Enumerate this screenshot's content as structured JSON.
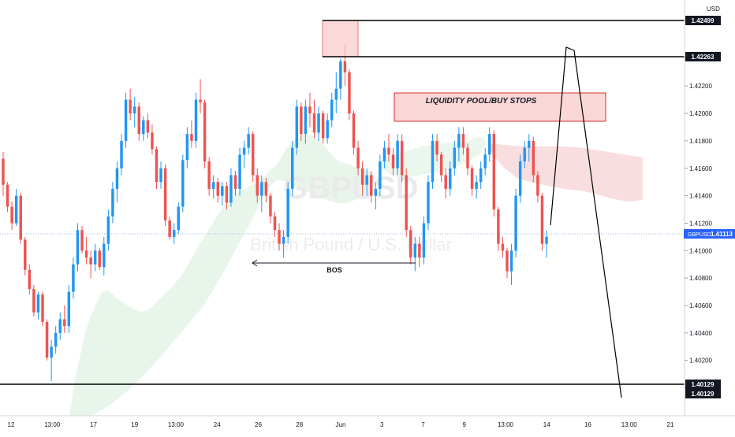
{
  "chart_data": {
    "type": "candlestick",
    "symbol": "GBPUSD",
    "watermark_symbol": "GBPUSD",
    "watermark_name": "British Pound / U.S. Dollar",
    "currency": "USD",
    "y_range": [
      1.399,
      1.4262
    ],
    "y_ticks": [
      "1.42400",
      "1.42200",
      "1.42000",
      "1.41800",
      "1.41600",
      "1.41400",
      "1.41200",
      "1.41000",
      "1.40800",
      "1.40600",
      "1.40400",
      "1.40200",
      "1.40000"
    ],
    "x_ticks": [
      "12",
      "13:00",
      "17",
      "19",
      "13:00",
      "24",
      "26",
      "28",
      "Jun",
      "3",
      "7",
      "9",
      "13:00",
      "14",
      "16",
      "13:00",
      "21"
    ],
    "price_labels": {
      "upper_resistance": "1.42499",
      "lower_resistance": "1.42263",
      "current": "1.41113",
      "support_1": "1.40129",
      "support_2": "1.40129"
    },
    "current_price_tag": "GBPUSD",
    "annotations": {
      "liquidity_label": "LIQUIDITY POOL/BUY STOPS",
      "bos_label": "BOS"
    },
    "candles_ohlc": [
      [
        1.4167,
        1.4172,
        1.414,
        1.4148
      ],
      [
        1.4148,
        1.415,
        1.4128,
        1.4132
      ],
      [
        1.4132,
        1.4136,
        1.4115,
        1.412
      ],
      [
        1.412,
        1.4145,
        1.4118,
        1.414
      ],
      [
        1.414,
        1.4142,
        1.4105,
        1.4108
      ],
      [
        1.4108,
        1.411,
        1.4082,
        1.4086
      ],
      [
        1.4086,
        1.409,
        1.4068,
        1.4072
      ],
      [
        1.4072,
        1.4075,
        1.4052,
        1.4055
      ],
      [
        1.4055,
        1.407,
        1.405,
        1.4068
      ],
      [
        1.4068,
        1.407,
        1.4045,
        1.4048
      ],
      [
        1.4048,
        1.405,
        1.402,
        1.4022
      ],
      [
        1.4022,
        1.4035,
        1.4005,
        1.403
      ],
      [
        1.403,
        1.4045,
        1.4025,
        1.404
      ],
      [
        1.404,
        1.4055,
        1.4035,
        1.405
      ],
      [
        1.405,
        1.406,
        1.404,
        1.4045
      ],
      [
        1.4045,
        1.4075,
        1.404,
        1.407
      ],
      [
        1.407,
        1.4095,
        1.4065,
        1.409
      ],
      [
        1.409,
        1.412,
        1.4085,
        1.4115
      ],
      [
        1.4115,
        1.4118,
        1.4098,
        1.41
      ],
      [
        1.41,
        1.411,
        1.409,
        1.4095
      ],
      [
        1.4095,
        1.41,
        1.408,
        1.409
      ],
      [
        1.409,
        1.4105,
        1.4085,
        1.41
      ],
      [
        1.41,
        1.4102,
        1.4086,
        1.4088
      ],
      [
        1.4088,
        1.411,
        1.4082,
        1.4105
      ],
      [
        1.4105,
        1.413,
        1.41,
        1.4125
      ],
      [
        1.4125,
        1.415,
        1.412,
        1.4145
      ],
      [
        1.4145,
        1.4165,
        1.4135,
        1.416
      ],
      [
        1.416,
        1.4185,
        1.4155,
        1.418
      ],
      [
        1.418,
        1.4215,
        1.4175,
        1.421
      ],
      [
        1.421,
        1.4218,
        1.4195,
        1.42
      ],
      [
        1.42,
        1.4212,
        1.419,
        1.4205
      ],
      [
        1.4205,
        1.4208,
        1.418,
        1.4185
      ],
      [
        1.4185,
        1.4198,
        1.418,
        1.4195
      ],
      [
        1.4195,
        1.42,
        1.4182,
        1.4186
      ],
      [
        1.4186,
        1.4192,
        1.417,
        1.4174
      ],
      [
        1.4174,
        1.4176,
        1.4145,
        1.415
      ],
      [
        1.415,
        1.4165,
        1.4145,
        1.416
      ],
      [
        1.416,
        1.4163,
        1.4118,
        1.4122
      ],
      [
        1.4122,
        1.4125,
        1.4108,
        1.411
      ],
      [
        1.411,
        1.412,
        1.4105,
        1.4115
      ],
      [
        1.4115,
        1.4135,
        1.4112,
        1.4132
      ],
      [
        1.4132,
        1.417,
        1.4128,
        1.4166
      ],
      [
        1.4166,
        1.419,
        1.416,
        1.4185
      ],
      [
        1.4185,
        1.4195,
        1.4175,
        1.418
      ],
      [
        1.418,
        1.4215,
        1.4175,
        1.421
      ],
      [
        1.421,
        1.4225,
        1.42,
        1.4208
      ],
      [
        1.4208,
        1.421,
        1.416,
        1.4165
      ],
      [
        1.4165,
        1.4168,
        1.414,
        1.4145
      ],
      [
        1.4145,
        1.4155,
        1.4138,
        1.415
      ],
      [
        1.415,
        1.4153,
        1.4135,
        1.414
      ],
      [
        1.414,
        1.415,
        1.4133,
        1.4147
      ],
      [
        1.4147,
        1.415,
        1.413,
        1.4135
      ],
      [
        1.4135,
        1.416,
        1.4132,
        1.4155
      ],
      [
        1.4155,
        1.4158,
        1.414,
        1.4145
      ],
      [
        1.4145,
        1.4175,
        1.414,
        1.417
      ],
      [
        1.417,
        1.418,
        1.416,
        1.4175
      ],
      [
        1.4175,
        1.419,
        1.417,
        1.4185
      ],
      [
        1.4185,
        1.4187,
        1.415,
        1.4155
      ],
      [
        1.4155,
        1.416,
        1.4135,
        1.414
      ],
      [
        1.414,
        1.4155,
        1.4128,
        1.415
      ],
      [
        1.415,
        1.4153,
        1.4135,
        1.414
      ],
      [
        1.414,
        1.4142,
        1.412,
        1.4125
      ],
      [
        1.4125,
        1.4128,
        1.411,
        1.4115
      ],
      [
        1.4115,
        1.412,
        1.41,
        1.4105
      ],
      [
        1.4105,
        1.4115,
        1.4095,
        1.411
      ],
      [
        1.411,
        1.415,
        1.4105,
        1.4145
      ],
      [
        1.4145,
        1.418,
        1.414,
        1.4175
      ],
      [
        1.4175,
        1.421,
        1.417,
        1.4205
      ],
      [
        1.4205,
        1.4208,
        1.418,
        1.4185
      ],
      [
        1.4185,
        1.421,
        1.4178,
        1.4205
      ],
      [
        1.4205,
        1.4215,
        1.419,
        1.42
      ],
      [
        1.42,
        1.421,
        1.4182,
        1.4186
      ],
      [
        1.4186,
        1.4205,
        1.418,
        1.42
      ],
      [
        1.42,
        1.4202,
        1.4178,
        1.4182
      ],
      [
        1.4182,
        1.42,
        1.4178,
        1.4195
      ],
      [
        1.4195,
        1.4215,
        1.419,
        1.421
      ],
      [
        1.421,
        1.423,
        1.42,
        1.4218
      ],
      [
        1.4218,
        1.424,
        1.421,
        1.4238
      ],
      [
        1.4238,
        1.425,
        1.422,
        1.423
      ],
      [
        1.423,
        1.4232,
        1.4195,
        1.42
      ],
      [
        1.42,
        1.4202,
        1.417,
        1.4175
      ],
      [
        1.4175,
        1.418,
        1.4155,
        1.416
      ],
      [
        1.416,
        1.4165,
        1.414,
        1.4148
      ],
      [
        1.4148,
        1.416,
        1.414,
        1.4155
      ],
      [
        1.4155,
        1.4158,
        1.4135,
        1.414
      ],
      [
        1.414,
        1.415,
        1.413,
        1.4145
      ],
      [
        1.4145,
        1.417,
        1.414,
        1.4165
      ],
      [
        1.4165,
        1.418,
        1.416,
        1.4175
      ],
      [
        1.4175,
        1.4185,
        1.4165,
        1.417
      ],
      [
        1.417,
        1.4175,
        1.4155,
        1.416
      ],
      [
        1.416,
        1.4185,
        1.4155,
        1.418
      ],
      [
        1.418,
        1.4185,
        1.415,
        1.4155
      ],
      [
        1.4155,
        1.416,
        1.411,
        1.4115
      ],
      [
        1.4115,
        1.4118,
        1.409,
        1.4095
      ],
      [
        1.4095,
        1.411,
        1.4085,
        1.4105
      ],
      [
        1.4105,
        1.411,
        1.4088,
        1.4095
      ],
      [
        1.4095,
        1.4125,
        1.409,
        1.412
      ],
      [
        1.412,
        1.4155,
        1.4115,
        1.415
      ],
      [
        1.415,
        1.4185,
        1.4145,
        1.418
      ],
      [
        1.418,
        1.4185,
        1.4165,
        1.417
      ],
      [
        1.417,
        1.4172,
        1.415,
        1.4155
      ],
      [
        1.4155,
        1.416,
        1.4138,
        1.4145
      ],
      [
        1.4145,
        1.4165,
        1.414,
        1.416
      ],
      [
        1.416,
        1.418,
        1.4155,
        1.4175
      ],
      [
        1.4175,
        1.419,
        1.4165,
        1.4185
      ],
      [
        1.4185,
        1.419,
        1.417,
        1.4175
      ],
      [
        1.4175,
        1.4178,
        1.4155,
        1.416
      ],
      [
        1.416,
        1.4162,
        1.414,
        1.4145
      ],
      [
        1.4145,
        1.4155,
        1.4138,
        1.415
      ],
      [
        1.415,
        1.4165,
        1.4145,
        1.416
      ],
      [
        1.416,
        1.4175,
        1.4155,
        1.417
      ],
      [
        1.417,
        1.419,
        1.4165,
        1.4185
      ],
      [
        1.4185,
        1.4188,
        1.4125,
        1.413
      ],
      [
        1.413,
        1.4132,
        1.41,
        1.4105
      ],
      [
        1.4105,
        1.411,
        1.4095,
        1.41
      ],
      [
        1.41,
        1.4102,
        1.408,
        1.4085
      ],
      [
        1.4085,
        1.4105,
        1.4075,
        1.41
      ],
      [
        1.41,
        1.4145,
        1.4095,
        1.414
      ],
      [
        1.414,
        1.417,
        1.4135,
        1.4165
      ],
      [
        1.4165,
        1.418,
        1.416,
        1.4175
      ],
      [
        1.4175,
        1.4185,
        1.4165,
        1.418
      ],
      [
        1.418,
        1.4183,
        1.415,
        1.4155
      ],
      [
        1.4155,
        1.4158,
        1.4135,
        1.414
      ],
      [
        1.414,
        1.4142,
        1.41,
        1.4105
      ],
      [
        1.4105,
        1.4115,
        1.4095,
        1.411
      ]
    ]
  }
}
